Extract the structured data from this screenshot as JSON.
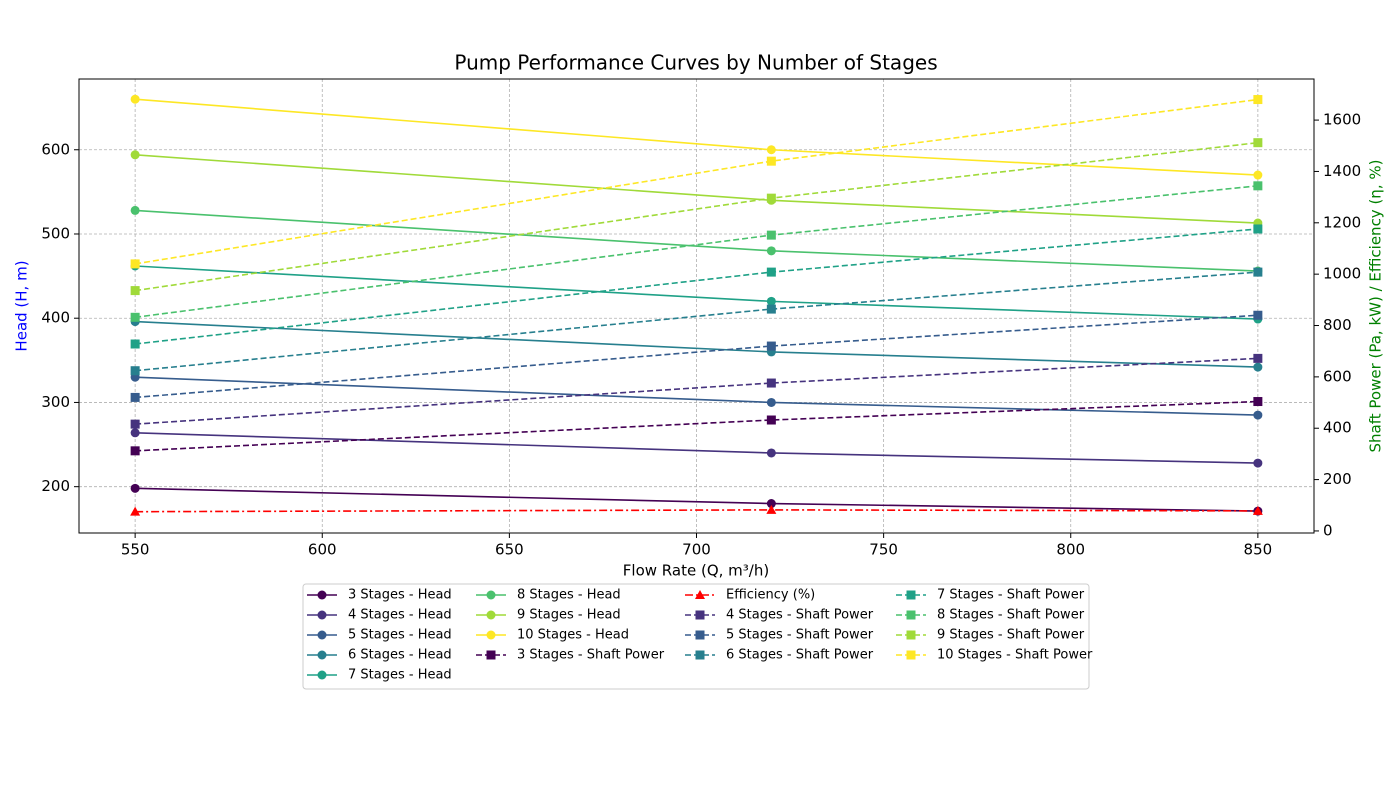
{
  "chart_data": {
    "type": "line",
    "title": "Pump Performance Curves by Number of Stages",
    "xlabel": "Flow Rate (Q, m³/h)",
    "ylabel": "Head (H, m)",
    "y2label": "Shaft Power (Pa, kW) / Efficiency (η, %)",
    "ylabel_color": "#0000ff",
    "y2label_color": "#008000",
    "x": [
      550,
      720,
      850
    ],
    "xlim": [
      535,
      865
    ],
    "xticks": [
      550,
      600,
      650,
      700,
      750,
      800,
      850
    ],
    "ylim": [
      145,
      684
    ],
    "yticks": [
      200,
      300,
      400,
      500,
      600
    ],
    "y2lim": [
      -8,
      1760
    ],
    "y2ticks": [
      0,
      200,
      400,
      600,
      800,
      1000,
      1200,
      1400,
      1600
    ],
    "grid": true,
    "legend": "lower center",
    "series": [
      {
        "name": "3 Stages - Head",
        "color": "#440154",
        "style": "solid",
        "marker": "circle",
        "axis": "y",
        "values": [
          198,
          180,
          171
        ]
      },
      {
        "name": "4 Stages - Head",
        "color": "#46337e",
        "style": "solid",
        "marker": "circle",
        "axis": "y",
        "values": [
          264,
          240,
          228
        ]
      },
      {
        "name": "5 Stages - Head",
        "color": "#365c8d",
        "style": "solid",
        "marker": "circle",
        "axis": "y",
        "values": [
          330,
          300,
          285
        ]
      },
      {
        "name": "6 Stages - Head",
        "color": "#277f8e",
        "style": "solid",
        "marker": "circle",
        "axis": "y",
        "values": [
          396,
          360,
          342
        ]
      },
      {
        "name": "7 Stages - Head",
        "color": "#1fa187",
        "style": "solid",
        "marker": "circle",
        "axis": "y",
        "values": [
          462,
          420,
          399
        ]
      },
      {
        "name": "8 Stages - Head",
        "color": "#4ac16d",
        "style": "solid",
        "marker": "circle",
        "axis": "y",
        "values": [
          528,
          480,
          456
        ]
      },
      {
        "name": "9 Stages - Head",
        "color": "#a0da39",
        "style": "solid",
        "marker": "circle",
        "axis": "y",
        "values": [
          594,
          540,
          513
        ]
      },
      {
        "name": "10 Stages - Head",
        "color": "#fde725",
        "style": "solid",
        "marker": "circle",
        "axis": "y",
        "values": [
          660,
          600,
          570
        ]
      },
      {
        "name": "3 Stages - Shaft Power",
        "color": "#440154",
        "style": "dashed",
        "marker": "square",
        "axis": "y2",
        "values": [
          312,
          432,
          504
        ]
      },
      {
        "name": "Efficiency (%)",
        "color": "#ff0000",
        "style": "dashdot",
        "marker": "triangle",
        "axis": "y2",
        "values": [
          75,
          82,
          78
        ]
      },
      {
        "name": "4 Stages - Shaft Power",
        "color": "#46337e",
        "style": "dashed",
        "marker": "square",
        "axis": "y2",
        "values": [
          416,
          576,
          672
        ]
      },
      {
        "name": "5 Stages - Shaft Power",
        "color": "#365c8d",
        "style": "dashed",
        "marker": "square",
        "axis": "y2",
        "values": [
          520,
          720,
          840
        ]
      },
      {
        "name": "6 Stages - Shaft Power",
        "color": "#277f8e",
        "style": "dashed",
        "marker": "square",
        "axis": "y2",
        "values": [
          624,
          864,
          1008
        ]
      },
      {
        "name": "7 Stages - Shaft Power",
        "color": "#1fa187",
        "style": "dashed",
        "marker": "square",
        "axis": "y2",
        "values": [
          728,
          1008,
          1176
        ]
      },
      {
        "name": "8 Stages - Shaft Power",
        "color": "#4ac16d",
        "style": "dashed",
        "marker": "square",
        "axis": "y2",
        "values": [
          832,
          1152,
          1344
        ]
      },
      {
        "name": "9 Stages - Shaft Power",
        "color": "#a0da39",
        "style": "dashed",
        "marker": "square",
        "axis": "y2",
        "values": [
          936,
          1296,
          1512
        ]
      },
      {
        "name": "10 Stages - Shaft Power",
        "color": "#fde725",
        "style": "dashed",
        "marker": "square",
        "axis": "y2",
        "values": [
          1040,
          1440,
          1680
        ]
      }
    ]
  }
}
